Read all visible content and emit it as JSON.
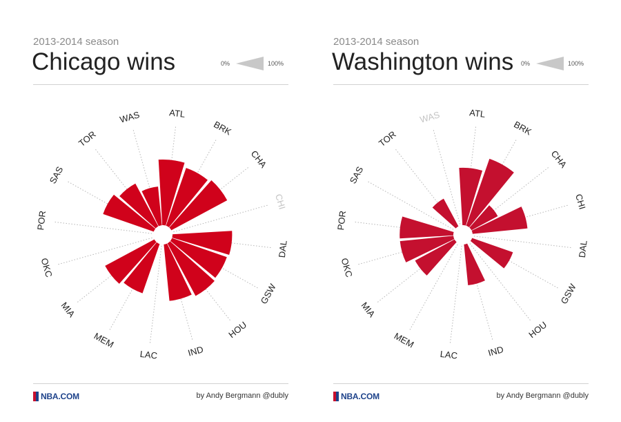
{
  "colors": {
    "bar": "#d0021b",
    "bar_alt": "#c4102f",
    "guide": "#b5b5b5",
    "label": "#222222",
    "label_muted": "#c4c4c4",
    "legend_wedge": "#c8c8c8"
  },
  "footer": {
    "brand": "NBA.COM",
    "credit": "by Andy Bergmann @dubly"
  },
  "legend": {
    "low": "0%",
    "high": "100%"
  },
  "chart_data": [
    {
      "type": "polar-bar",
      "season": "2013-2014 season",
      "title": "Chicago wins",
      "team": "CHI",
      "value_unit": "win fraction (0-1)",
      "categories": [
        "ATL",
        "BRK",
        "CHA",
        "CHI",
        "DAL",
        "GSW",
        "HOU",
        "IND",
        "LAC",
        "MEM",
        "MIA",
        "OKC",
        "POR",
        "SAS",
        "TOR",
        "WAS"
      ],
      "values": [
        0.88,
        0.82,
        0.85,
        0,
        0.8,
        0.78,
        0.8,
        0.76,
        0,
        0.7,
        0.75,
        0,
        0,
        0.72,
        0.65,
        0.52
      ]
    },
    {
      "type": "polar-bar",
      "season": "2013-2014 season",
      "title": "Washington wins",
      "team": "WAS",
      "value_unit": "win fraction (0-1)",
      "categories": [
        "ATL",
        "BRK",
        "CHA",
        "CHI",
        "DAL",
        "GSW",
        "HOU",
        "IND",
        "LAC",
        "MEM",
        "MIA",
        "OKC",
        "POR",
        "SAS",
        "TOR",
        "WAS"
      ],
      "values": [
        0.77,
        0.95,
        0.4,
        0.74,
        0,
        0.58,
        0,
        0.55,
        0,
        0,
        0.6,
        0.72,
        0.72,
        0,
        0.42,
        0
      ]
    }
  ]
}
